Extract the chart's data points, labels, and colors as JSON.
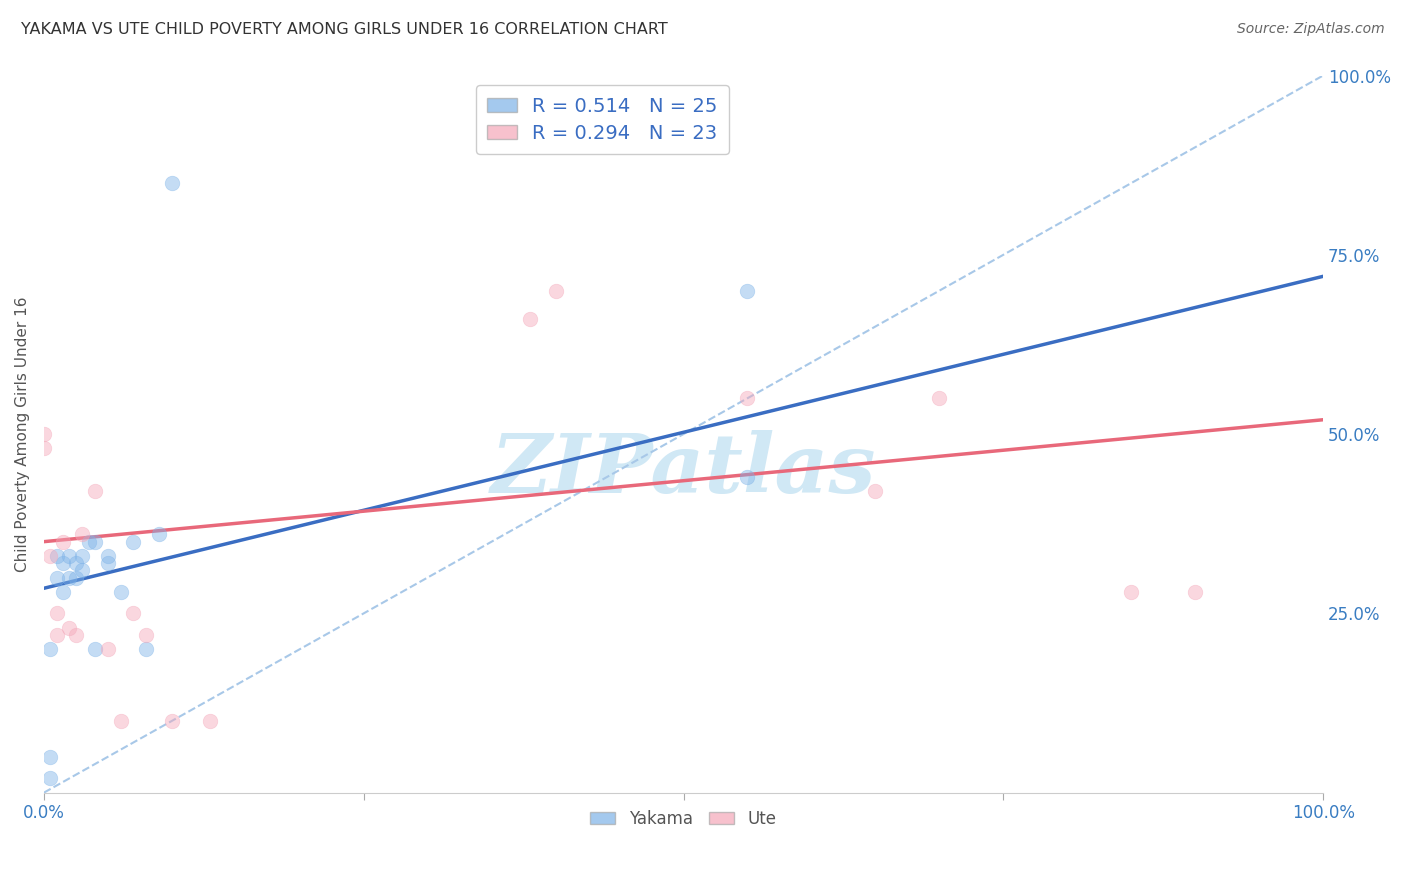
{
  "title": "YAKAMA VS UTE CHILD POVERTY AMONG GIRLS UNDER 16 CORRELATION CHART",
  "source": "Source: ZipAtlas.com",
  "ylabel": "Child Poverty Among Girls Under 16",
  "yakama_R": 0.514,
  "yakama_N": 25,
  "ute_R": 0.294,
  "ute_N": 23,
  "yakama_color": "#7EB3E8",
  "ute_color": "#F4A7B9",
  "yakama_line_color": "#3A6DC2",
  "ute_line_color": "#E8687A",
  "diag_line_color": "#A8C8E8",
  "watermark_color": "#D0E8F5",
  "yakama_x": [
    0.005,
    0.005,
    0.005,
    0.01,
    0.01,
    0.015,
    0.015,
    0.02,
    0.02,
    0.025,
    0.025,
    0.03,
    0.03,
    0.035,
    0.04,
    0.04,
    0.05,
    0.05,
    0.06,
    0.07,
    0.08,
    0.09,
    0.1,
    0.55,
    0.55
  ],
  "yakama_y": [
    0.02,
    0.05,
    0.2,
    0.33,
    0.3,
    0.28,
    0.32,
    0.33,
    0.3,
    0.32,
    0.3,
    0.33,
    0.31,
    0.35,
    0.2,
    0.35,
    0.32,
    0.33,
    0.28,
    0.35,
    0.2,
    0.36,
    0.85,
    0.7,
    0.44
  ],
  "ute_x": [
    0.0,
    0.0,
    0.005,
    0.01,
    0.01,
    0.015,
    0.02,
    0.025,
    0.03,
    0.04,
    0.05,
    0.06,
    0.07,
    0.08,
    0.1,
    0.13,
    0.38,
    0.4,
    0.55,
    0.65,
    0.7,
    0.85,
    0.9
  ],
  "ute_y": [
    0.48,
    0.5,
    0.33,
    0.25,
    0.22,
    0.35,
    0.23,
    0.22,
    0.36,
    0.42,
    0.2,
    0.1,
    0.25,
    0.22,
    0.1,
    0.1,
    0.66,
    0.7,
    0.55,
    0.42,
    0.55,
    0.28,
    0.28
  ],
  "yakama_line": [
    0.0,
    1.0,
    0.285,
    0.72
  ],
  "ute_line": [
    0.0,
    1.0,
    0.35,
    0.52
  ],
  "xlim": [
    0.0,
    1.0
  ],
  "ylim": [
    0.0,
    1.0
  ],
  "yticks": [
    0.25,
    0.5,
    0.75,
    1.0
  ],
  "yticklabels_right": [
    "25.0%",
    "50.0%",
    "75.0%",
    "100.0%"
  ],
  "marker_size": 110,
  "marker_alpha": 0.45,
  "background_color": "#FFFFFF"
}
